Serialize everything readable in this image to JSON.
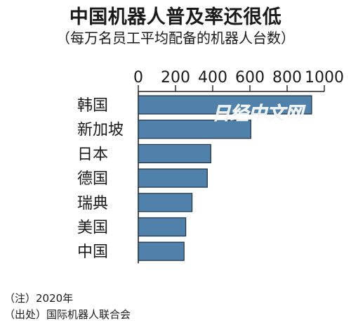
{
  "title": "中国机器人普及率还很低",
  "subtitle": "（每万名员工平均配备的机器人台数）",
  "watermark": "日经中文网",
  "notes": {
    "note": "（注）2020年",
    "source": "（出处）国际机器人联合会"
  },
  "colors": {
    "bar": "#4f81aa",
    "bar_stroke": "#1f2f44",
    "axis": "#222222",
    "text": "#1a1a1a"
  },
  "chart_data": {
    "type": "bar",
    "orientation": "horizontal",
    "categories": [
      "韩国",
      "新加坡",
      "日本",
      "德国",
      "瑞典",
      "美国",
      "中国"
    ],
    "values": [
      932,
      605,
      390,
      371,
      289,
      255,
      246
    ],
    "ticks": [
      "0",
      "200",
      "400",
      "600",
      "800",
      "1000"
    ],
    "xlim": [
      0,
      1000
    ],
    "axis_position": "top",
    "title": "中国机器人普及率还很低",
    "subtitle": "（每万名员工平均配备的机器人台数）",
    "xlabel": "",
    "ylabel": "",
    "grid": false,
    "legend": "none"
  }
}
